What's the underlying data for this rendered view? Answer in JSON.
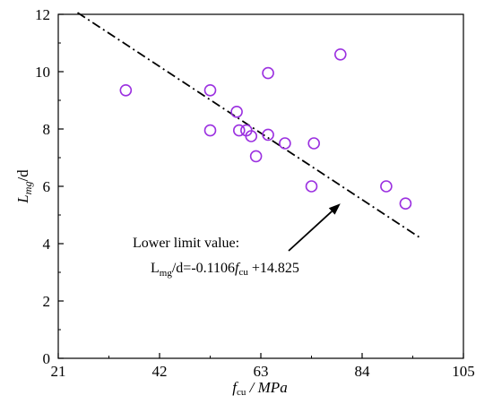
{
  "chart_data": {
    "type": "scatter",
    "x": [
      35,
      52.5,
      52.5,
      58,
      58.5,
      60,
      61,
      62,
      64.5,
      64.5,
      68,
      73.5,
      74,
      79.5,
      89,
      93
    ],
    "y": [
      9.35,
      9.35,
      7.95,
      8.6,
      7.95,
      7.95,
      7.75,
      7.05,
      9.95,
      7.8,
      7.5,
      6.0,
      7.5,
      10.6,
      6.0,
      5.4
    ],
    "marker_color": "#9b30e0",
    "trend_line": {
      "slope": -0.1106,
      "intercept": 14.825,
      "x_range": [
        25,
        96
      ],
      "style": "dash-dot",
      "color": "#000000"
    },
    "xlim": [
      21,
      105
    ],
    "ylim": [
      0,
      12
    ],
    "x_ticks": [
      "21",
      "42",
      "63",
      "84",
      "105"
    ],
    "y_ticks": [
      "0",
      "2",
      "4",
      "6",
      "8",
      "10",
      "12"
    ],
    "ylabel": {
      "main": "L",
      "sub": "mg",
      "suffix": "/d"
    },
    "xlabel": {
      "main": "f",
      "sub": "cu",
      "suffix": " / MPa"
    },
    "annotation": {
      "line1": "Lower limit value:",
      "line2_a": "L",
      "line2_sub": "mg",
      "line2_b": "/d=-0.1106",
      "line2_f": "f",
      "line2_fsub": "cu",
      "line2_c": " +14.825",
      "arrow_target": [
        79.5,
        5.4
      ]
    },
    "grid": false,
    "legend": "none"
  }
}
